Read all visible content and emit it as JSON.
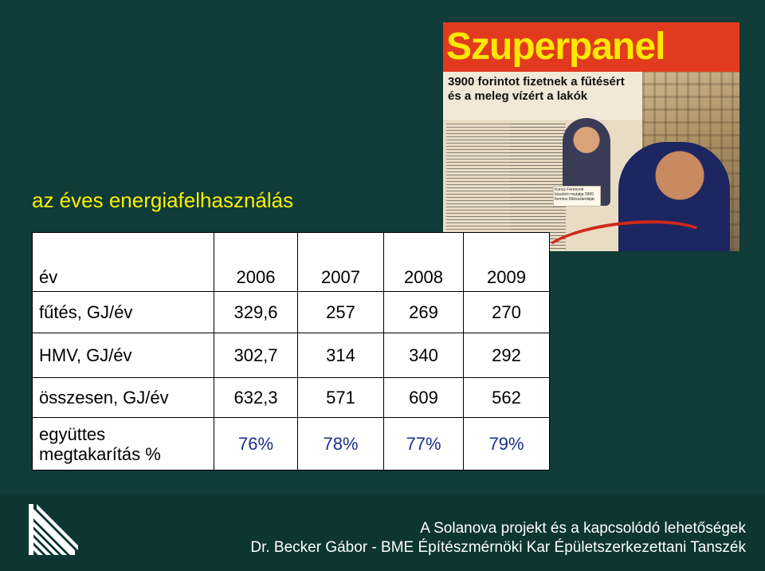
{
  "slide": {
    "title": "az éves energiafelhasználás"
  },
  "clipping": {
    "headline": "Szuperpanel",
    "subhead": "3900 forintot fizetnek a fűtésért és a meleg vízért a lakók",
    "caption": "Kunsz Ferencné büszkén mutatja 3900 forintos fűtésszámláját"
  },
  "table": {
    "header": [
      "év",
      "2006",
      "2007",
      "2008",
      "2009"
    ],
    "rows": [
      {
        "label": "fűtés, GJ/év",
        "values": [
          "329,6",
          "257",
          "269",
          "270"
        ]
      },
      {
        "label": "HMV, GJ/év",
        "values": [
          "302,7",
          "314",
          "340",
          "292"
        ]
      },
      {
        "label": "összesen, GJ/év",
        "values": [
          "632,3",
          "571",
          "609",
          "562"
        ]
      },
      {
        "label": "együttes megtakarítás %",
        "values": [
          "76%",
          "78%",
          "77%",
          "79%"
        ]
      }
    ]
  },
  "footer": {
    "line1": "A Solanova projekt és a kapcsolódó lehetőségek",
    "line2": "Dr. Becker Gábor - BME Építészmérnöki Kar Épületszerkezettani Tanszék"
  },
  "colors": {
    "background": "#0f3b38",
    "title": "#fbef00",
    "percent": "#1b2f8a",
    "headline_bg": "#e23a1e",
    "headline_text": "#ffe800"
  }
}
